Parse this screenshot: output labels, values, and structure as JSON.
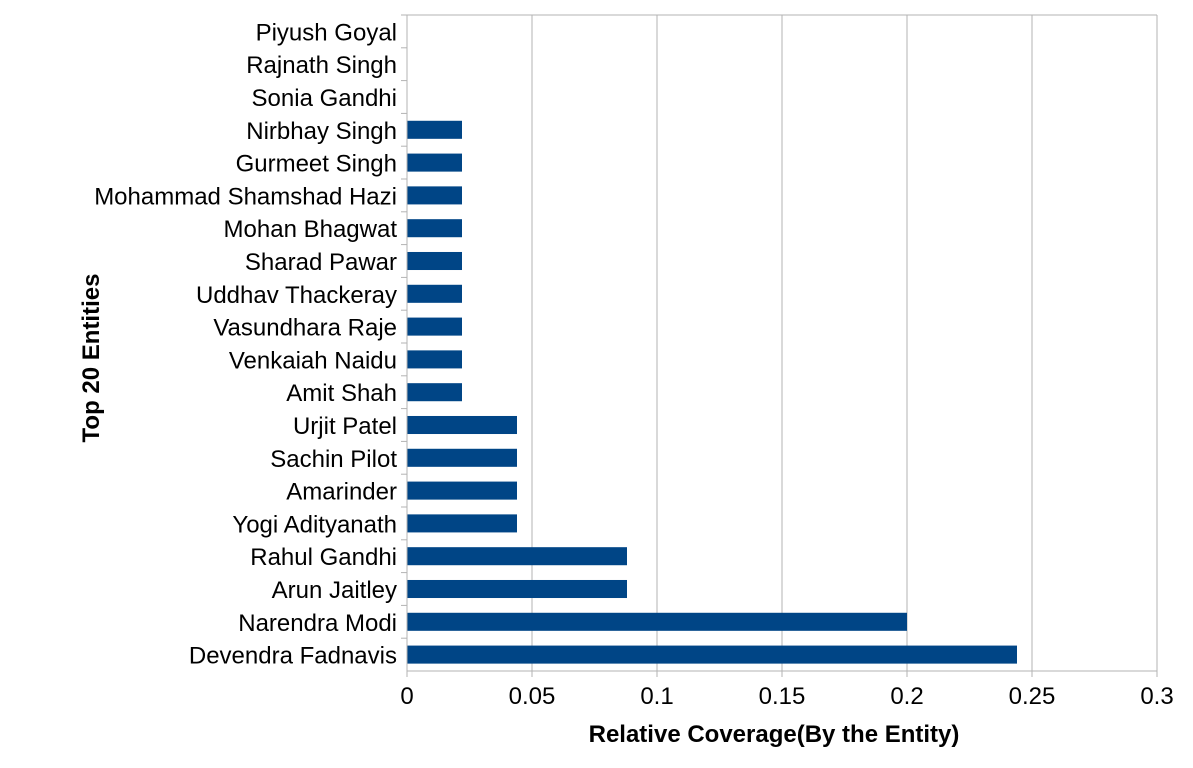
{
  "chart_data": {
    "type": "bar",
    "orientation": "horizontal",
    "title": "",
    "xlabel": "Relative Coverage(By the Entity)",
    "ylabel": "Top 20 Entities",
    "xlim": [
      0,
      0.3
    ],
    "xticks": [
      0,
      0.05,
      0.1,
      0.15,
      0.2,
      0.25,
      0.3
    ],
    "xtick_labels": [
      "0",
      "0.05",
      "0.1",
      "0.15",
      "0.2",
      "0.25",
      "0.3"
    ],
    "grid": "vertical",
    "legend": "none",
    "bar_color": "#004586",
    "categories": [
      "Piyush Goyal",
      "Rajnath Singh",
      "Sonia Gandhi",
      "Nirbhay Singh",
      "Gurmeet Singh",
      "Mohammad Shamshad Hazi",
      "Mohan Bhagwat",
      "Sharad Pawar",
      "Uddhav Thackeray",
      "Vasundhara Raje",
      "Venkaiah Naidu",
      "Amit Shah",
      "Urjit Patel",
      "Sachin Pilot",
      "Amarinder",
      "Yogi Adityanath",
      "Rahul Gandhi",
      "Arun Jaitley",
      "Narendra Modi",
      "Devendra Fadnavis"
    ],
    "values": [
      0,
      0,
      0,
      0.022,
      0.022,
      0.022,
      0.022,
      0.022,
      0.022,
      0.022,
      0.022,
      0.022,
      0.044,
      0.044,
      0.044,
      0.044,
      0.088,
      0.088,
      0.2,
      0.244
    ]
  }
}
